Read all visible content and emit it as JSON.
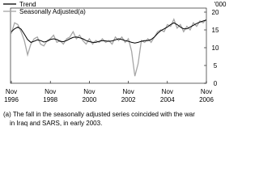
{
  "chart_data": {
    "type": "line",
    "y_label": "'000",
    "x": [
      "1996-11",
      "1997-01",
      "1997-03",
      "1997-05",
      "1997-07",
      "1997-09",
      "1997-11",
      "1998-01",
      "1998-03",
      "1998-05",
      "1998-07",
      "1998-09",
      "1998-11",
      "1999-01",
      "1999-03",
      "1999-05",
      "1999-07",
      "1999-09",
      "1999-11",
      "2000-01",
      "2000-03",
      "2000-05",
      "2000-07",
      "2000-09",
      "2000-11",
      "2001-01",
      "2001-03",
      "2001-05",
      "2001-07",
      "2001-09",
      "2001-11",
      "2002-01",
      "2002-03",
      "2002-05",
      "2002-07",
      "2002-09",
      "2002-11",
      "2003-01",
      "2003-03",
      "2003-05",
      "2003-07",
      "2003-09",
      "2003-11",
      "2004-01",
      "2004-03",
      "2004-05",
      "2004-07",
      "2004-09",
      "2004-11",
      "2005-01",
      "2005-03",
      "2005-05",
      "2005-07",
      "2005-09",
      "2005-11",
      "2006-01",
      "2006-03",
      "2006-05",
      "2006-07",
      "2006-09",
      "2006-11"
    ],
    "series": [
      {
        "name": "Trend",
        "color": "#000000",
        "values": [
          14.5,
          15.3,
          15.8,
          15.2,
          13.8,
          12.3,
          11.5,
          11.8,
          12.2,
          12.0,
          11.6,
          11.8,
          12.3,
          12.5,
          12.3,
          11.8,
          11.7,
          12.0,
          12.5,
          12.9,
          13.0,
          12.8,
          12.5,
          12.0,
          11.7,
          11.5,
          11.5,
          11.8,
          12.0,
          11.9,
          11.8,
          11.9,
          12.2,
          12.5,
          12.3,
          12.0,
          11.8,
          11.5,
          11.3,
          11.5,
          11.8,
          12.0,
          12.0,
          12.3,
          13.0,
          14.0,
          14.8,
          15.3,
          15.8,
          16.5,
          17.0,
          16.5,
          15.8,
          15.3,
          15.3,
          15.8,
          16.3,
          16.8,
          17.2,
          17.5,
          17.8
        ]
      },
      {
        "name": "Seasonally Adjusted(a)",
        "color": "#a6a6a6",
        "values": [
          14,
          17,
          16.5,
          14.5,
          12,
          8,
          11,
          12.5,
          13,
          11,
          10.5,
          12,
          12.5,
          13.5,
          11.5,
          12,
          11,
          12.5,
          13,
          14.5,
          12.5,
          13.5,
          12,
          11,
          12.5,
          11,
          12,
          11.5,
          12.5,
          11.5,
          12,
          11,
          13,
          12,
          13,
          11.5,
          12.5,
          9,
          2,
          5.5,
          12,
          11.5,
          12.5,
          11.5,
          13,
          14.5,
          15,
          14.5,
          16.5,
          16,
          18,
          15.5,
          16.5,
          14.5,
          16,
          15,
          17,
          16,
          17.5,
          17,
          18
        ]
      }
    ],
    "ylim": [
      0,
      20
    ],
    "yticks": [
      0,
      5,
      10,
      15,
      20
    ],
    "xticks": [
      {
        "value": "1996-11",
        "label": [
          "Nov",
          "1996"
        ]
      },
      {
        "value": "1998-11",
        "label": [
          "Nov",
          "1998"
        ]
      },
      {
        "value": "2000-11",
        "label": [
          "Nov",
          "2000"
        ]
      },
      {
        "value": "2002-11",
        "label": [
          "Nov",
          "2002"
        ]
      },
      {
        "value": "2004-11",
        "label": [
          "Nov",
          "2004"
        ]
      },
      {
        "value": "2006-11",
        "label": [
          "Nov",
          "2006"
        ]
      }
    ],
    "footnote": [
      "(a) The fall in the seasonally adjusted series coincided with the war",
      "in Iraq and SARS, in early 2003."
    ]
  }
}
